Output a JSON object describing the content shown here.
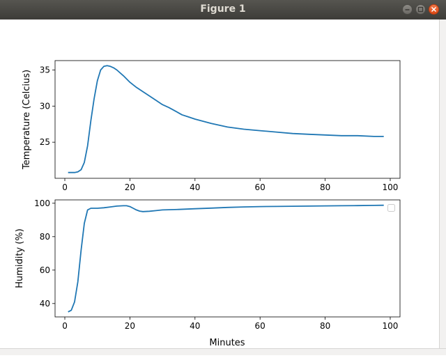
{
  "window": {
    "title": "Figure 1"
  },
  "colors": {
    "line": "#1f77b4",
    "axes": "#000000",
    "close_button": "#dd4814"
  },
  "chart_data": [
    {
      "type": "line",
      "title": "",
      "xlabel": "",
      "ylabel": "Temperature (Celcius)",
      "xlim": [
        -3,
        103
      ],
      "ylim": [
        20,
        36.3
      ],
      "xticks": [
        0,
        20,
        40,
        60,
        80,
        100
      ],
      "yticks": [
        25,
        30,
        35
      ],
      "grid": false,
      "series": [
        {
          "x": [
            1,
            2,
            3,
            4,
            5,
            6,
            7,
            8,
            9,
            10,
            11,
            12,
            13,
            14,
            15,
            16,
            18,
            20,
            22,
            24,
            26,
            28,
            30,
            32,
            34,
            36,
            38,
            40,
            45,
            50,
            55,
            60,
            65,
            70,
            75,
            80,
            85,
            90,
            95,
            98
          ],
          "y": [
            20.8,
            20.8,
            20.8,
            20.9,
            21.2,
            22.2,
            24.5,
            28.0,
            31.0,
            33.5,
            35.0,
            35.5,
            35.6,
            35.5,
            35.3,
            35.0,
            34.2,
            33.3,
            32.6,
            32.0,
            31.4,
            30.8,
            30.2,
            29.8,
            29.3,
            28.8,
            28.5,
            28.2,
            27.6,
            27.1,
            26.8,
            26.6,
            26.4,
            26.2,
            26.1,
            26.0,
            25.9,
            25.9,
            25.8,
            25.8
          ]
        }
      ]
    },
    {
      "type": "line",
      "title": "",
      "xlabel": "Minutes",
      "ylabel": "Humidity (%)",
      "xlim": [
        -3,
        103
      ],
      "ylim": [
        32,
        102
      ],
      "xticks": [
        0,
        20,
        40,
        60,
        80,
        100
      ],
      "yticks": [
        40,
        60,
        80,
        100
      ],
      "grid": false,
      "legend": "top-right",
      "series": [
        {
          "x": [
            1,
            2,
            3,
            4,
            5,
            6,
            7,
            8,
            9,
            10,
            12,
            14,
            16,
            18,
            19,
            20,
            21,
            22,
            23,
            24,
            26,
            28,
            30,
            35,
            40,
            45,
            50,
            55,
            60,
            65,
            70,
            75,
            80,
            85,
            90,
            95,
            98
          ],
          "y": [
            35,
            36,
            41,
            53,
            72,
            88,
            96,
            97,
            97,
            97,
            97.3,
            97.8,
            98.3,
            98.5,
            98.5,
            98,
            97,
            96,
            95.3,
            95,
            95.2,
            95.6,
            96,
            96.3,
            96.7,
            97.1,
            97.5,
            97.8,
            98,
            98.1,
            98.2,
            98.3,
            98.4,
            98.5,
            98.6,
            98.7,
            98.8
          ]
        }
      ]
    }
  ]
}
